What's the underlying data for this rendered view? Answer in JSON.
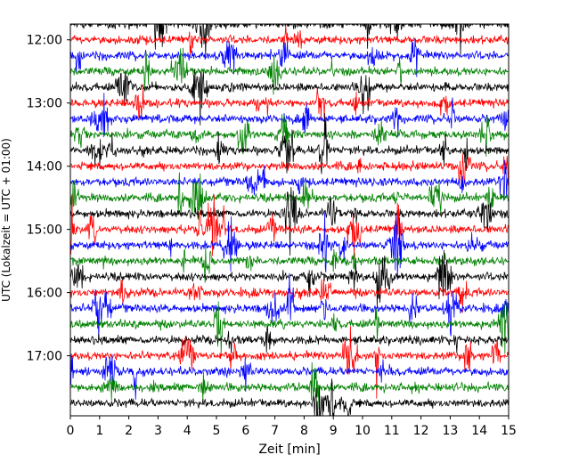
{
  "chart_data": {
    "type": "line",
    "title": "",
    "xlabel": "Zeit  [min]",
    "ylabel": "UTC (Lokalzeit = UTC + 01:00)",
    "x_ticks": [
      0,
      1,
      2,
      3,
      4,
      5,
      6,
      7,
      8,
      9,
      10,
      11,
      12,
      13,
      14,
      15
    ],
    "xlim": [
      0,
      15
    ],
    "y_tick_labels": [
      "12:00",
      "13:00",
      "14:00",
      "15:00",
      "16:00",
      "17:00"
    ],
    "ylim_utc": [
      "11:45",
      "17:57"
    ],
    "trace_interval_minutes": 15,
    "first_trace_utc": "11:45",
    "trace_count": 25,
    "trace_colors": [
      "#000000",
      "#ff0000",
      "#0000ff",
      "#008000"
    ],
    "grid": false,
    "legend": "none"
  }
}
